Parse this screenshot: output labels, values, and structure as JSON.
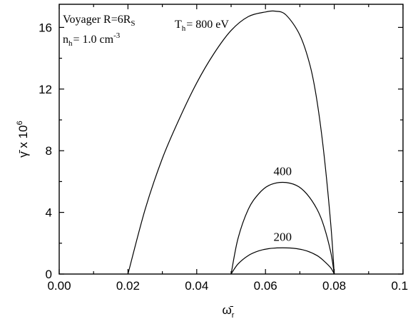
{
  "chart_data": {
    "type": "line",
    "title": "",
    "xlabel": "ω̄",
    "xlabel_sub": "r",
    "ylabel": "γ̄ x 10",
    "ylabel_sup": "6",
    "xlim": [
      0.0,
      0.1
    ],
    "ylim": [
      0,
      17.5
    ],
    "xticks": [
      0.0,
      0.02,
      0.04,
      0.06,
      0.08,
      0.1
    ],
    "xtick_labels": [
      "0.00",
      "0.02",
      "0.04",
      "0.06",
      "0.08",
      "0.10"
    ],
    "yticks": [
      0,
      4,
      8,
      12,
      16
    ],
    "ytick_labels": [
      "0",
      "4",
      "8",
      "12",
      "16"
    ],
    "grid": false,
    "annotations": {
      "line1": "Voyager R=6R",
      "line1_sub": "S",
      "line2": "n",
      "line2_sub": "h",
      "line2_rest": "= 1.0 cm",
      "line2_sup": "-3",
      "temp_prefix": "T",
      "temp_sub": "h",
      "temp_rest": "= 800 eV"
    },
    "series": [
      {
        "label": "800 eV",
        "x": [
          0.02,
          0.025,
          0.03,
          0.035,
          0.04,
          0.045,
          0.05,
          0.055,
          0.06,
          0.063,
          0.066,
          0.07,
          0.073,
          0.075,
          0.077,
          0.079,
          0.08
        ],
        "y": [
          0,
          4.2,
          7.5,
          10.1,
          12.4,
          14.3,
          15.8,
          16.7,
          17.0,
          17.05,
          16.8,
          15.5,
          13.5,
          11.2,
          7.8,
          3.2,
          0
        ]
      },
      {
        "label": "400",
        "x": [
          0.05,
          0.052,
          0.055,
          0.058,
          0.061,
          0.065,
          0.069,
          0.072,
          0.075,
          0.077,
          0.079,
          0.08
        ],
        "y": [
          0,
          2.3,
          4.2,
          5.2,
          5.75,
          5.95,
          5.75,
          5.2,
          4.2,
          3.1,
          1.4,
          0
        ]
      },
      {
        "label": "200",
        "x": [
          0.05,
          0.052,
          0.055,
          0.058,
          0.061,
          0.065,
          0.069,
          0.072,
          0.075,
          0.077,
          0.079,
          0.08
        ],
        "y": [
          0,
          0.65,
          1.2,
          1.5,
          1.65,
          1.7,
          1.65,
          1.5,
          1.2,
          0.85,
          0.4,
          0
        ]
      }
    ]
  }
}
